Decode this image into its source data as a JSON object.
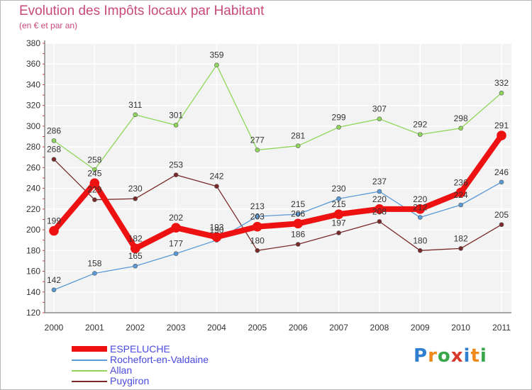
{
  "title": "Evolution des Impôts locaux par Habitant",
  "subtitle": "(en € et par an)",
  "brand": {
    "letters": [
      "P",
      "r",
      "o",
      "x",
      "i",
      "t",
      "i"
    ],
    "colors": [
      "#2f7fd0",
      "#f08a1c",
      "#3aa64a",
      "#d63a2a",
      "#2f7fd0",
      "#f08a1c",
      "#3aa64a"
    ]
  },
  "chart_data": {
    "type": "line",
    "title": "Evolution des Impôts locaux par Habitant",
    "ylabel": "(en € et par an)",
    "xlabel": "",
    "x": [
      "2000",
      "2001",
      "2002",
      "2003",
      "2004",
      "2005",
      "2006",
      "2007",
      "2008",
      "2009",
      "2010",
      "2011"
    ],
    "ylim": [
      120,
      380
    ],
    "yticks": [
      120,
      140,
      160,
      180,
      200,
      220,
      240,
      260,
      280,
      300,
      320,
      340,
      360,
      380
    ],
    "series": [
      {
        "name": "Allan",
        "color": "#8fd65a",
        "values": [
          286,
          258,
          311,
          301,
          359,
          277,
          281,
          299,
          307,
          292,
          298,
          332
        ]
      },
      {
        "name": "Puygiron",
        "color": "#7a2a2a",
        "values": [
          268,
          229,
          230,
          253,
          242,
          180,
          186,
          197,
          208,
          180,
          182,
          205
        ]
      },
      {
        "name": "Rochefort-en-Valdaine",
        "color": "#5a9ad6",
        "values": [
          142,
          158,
          165,
          177,
          190,
          213,
          215,
          230,
          237,
          212,
          224,
          246
        ]
      },
      {
        "name": "ESPELUCHE",
        "color": "#ee1111",
        "values": [
          199,
          245,
          182,
          202,
          193,
          203,
          206,
          215,
          220,
          220,
          236,
          291
        ]
      }
    ],
    "legend": [
      "ESPELUCHE",
      "Rochefort-en-Valdaine",
      "Allan",
      "Puygiron"
    ]
  }
}
